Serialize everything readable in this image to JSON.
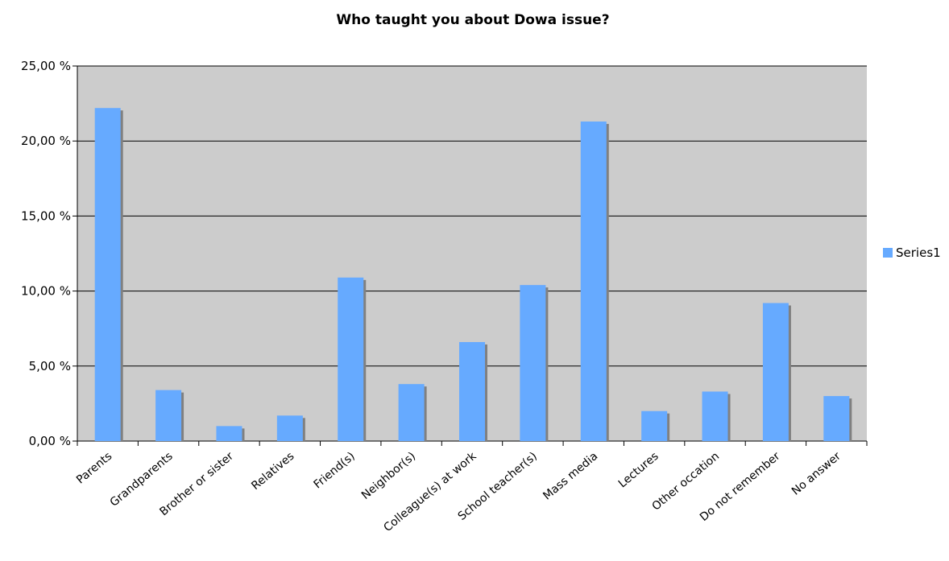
{
  "chart_data": {
    "type": "bar",
    "title": "Who taught you about Dowa issue?",
    "xlabel": "",
    "ylabel": "",
    "categories": [
      "Parents",
      "Grandparents",
      "Brother or sister",
      "Relatives",
      "Friend(s)",
      "Neighbor(s)",
      "Colleague(s) at work",
      "School teacher(s)",
      "Mass media",
      "Lectures",
      "Other occation",
      "Do not remember",
      "No answer"
    ],
    "series": [
      {
        "name": "Series1",
        "values": [
          22.2,
          3.4,
          1.0,
          1.7,
          10.9,
          3.8,
          6.6,
          10.4,
          21.3,
          2.0,
          3.3,
          9.2,
          3.0
        ]
      }
    ],
    "ylim": [
      0,
      25
    ],
    "yticks": [
      0,
      5,
      10,
      15,
      20,
      25
    ],
    "ytick_labels": [
      "0,00 %",
      "5,00 %",
      "10,00 %",
      "15,00 %",
      "20,00 %",
      "25,00 %"
    ],
    "legend_position": "right",
    "grid": true,
    "colors": {
      "bar": "#66aaff",
      "bar_shadow": "#808080",
      "plot_background": "#cccccc",
      "gridline": "#000000",
      "axis": "#000000"
    }
  }
}
